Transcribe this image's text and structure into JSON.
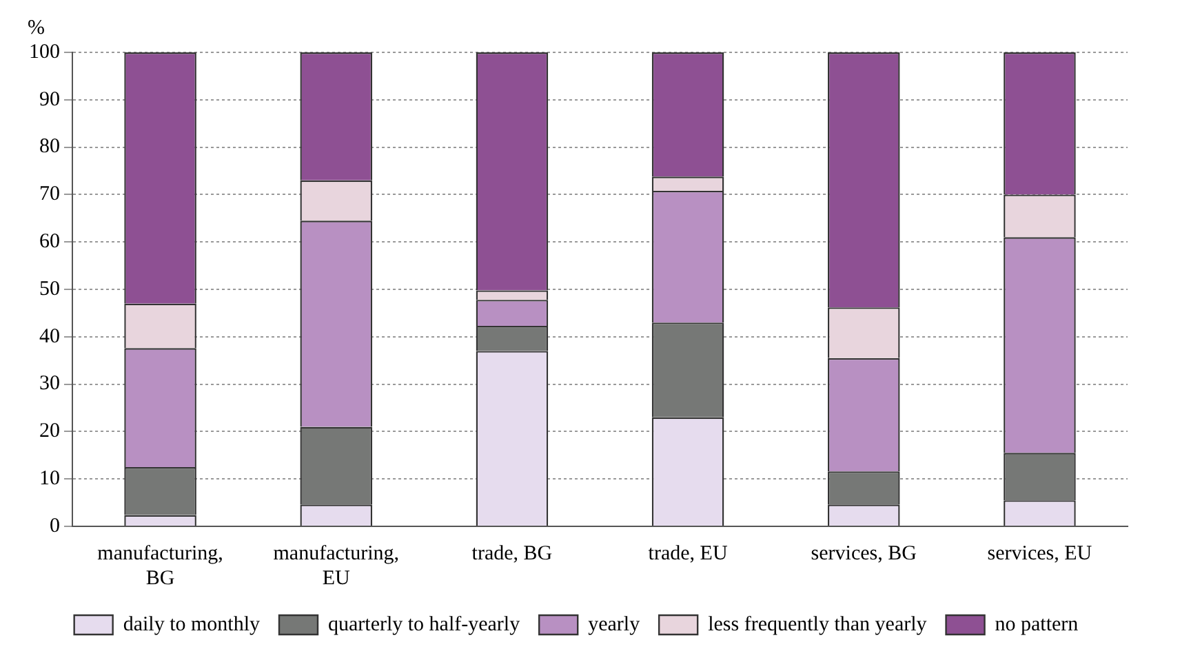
{
  "chart_data": {
    "type": "bar",
    "stacked": true,
    "ylabel": "%",
    "categories": [
      "manufacturing, BG",
      "manufacturing, EU",
      "trade, BG",
      "trade, EU",
      "services, BG",
      "services, EU"
    ],
    "series": [
      {
        "name": "daily to monthly",
        "color": "#e6dcee",
        "values": [
          2.4,
          4.6,
          37,
          23,
          4.6,
          5.5
        ]
      },
      {
        "name": "quarterly to half-yearly",
        "color": "#767876",
        "values": [
          10.1,
          16.4,
          5.3,
          20,
          7,
          10
        ]
      },
      {
        "name": "yearly",
        "color": "#b890c2",
        "values": [
          25.1,
          43.5,
          5.5,
          27.8,
          23.9,
          45.5
        ]
      },
      {
        "name": "less frequently than yearly",
        "color": "#e8d5dd",
        "values": [
          9.4,
          8.5,
          2,
          3,
          10.7,
          9
        ]
      },
      {
        "name": "no pattern",
        "color": "#8e5093",
        "values": [
          53,
          27,
          50.2,
          26.2,
          53.8,
          30
        ]
      }
    ],
    "ylim": [
      0,
      100
    ],
    "yticks": [
      0,
      10,
      20,
      30,
      40,
      50,
      60,
      70,
      80,
      90,
      100
    ],
    "grid": "y",
    "legend": "bottom"
  }
}
